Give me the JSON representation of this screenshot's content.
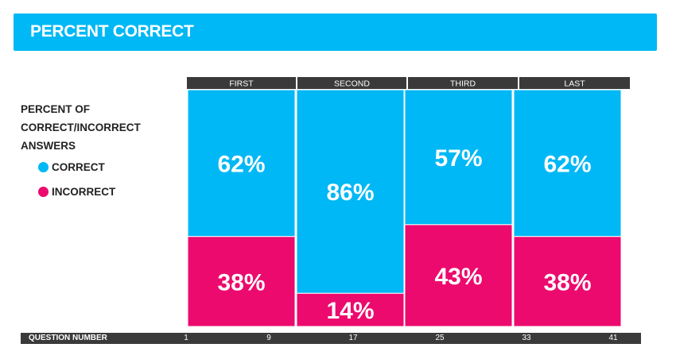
{
  "title": "PERCENT CORRECT",
  "legend": {
    "heading_lines": [
      "PERCENT OF",
      "CORRECT/INCORRECT",
      "ANSWERS"
    ],
    "items": [
      {
        "label": "CORRECT",
        "color": "#00b8f5"
      },
      {
        "label": "INCORRECT",
        "color": "#ec0a6e"
      }
    ]
  },
  "chart_data": {
    "type": "bar",
    "stacked": true,
    "categories": [
      "FIRST",
      "SECOND",
      "THIRD",
      "LAST"
    ],
    "series": [
      {
        "name": "CORRECT",
        "values": [
          62,
          86,
          57,
          62
        ],
        "labels": [
          "62%",
          "86%",
          "57%",
          "62%"
        ],
        "color": "#00b8f5"
      },
      {
        "name": "INCORRECT",
        "values": [
          38,
          14,
          43,
          38
        ],
        "labels": [
          "38%",
          "14%",
          "43%",
          "38%"
        ],
        "color": "#ec0a6e"
      }
    ],
    "ylim": [
      0,
      100
    ],
    "xlabel": "QUESTION NUMBER",
    "x_ticks": [
      "1",
      "9",
      "17",
      "25",
      "33",
      "41"
    ],
    "grid": false,
    "legend_position": "left"
  }
}
